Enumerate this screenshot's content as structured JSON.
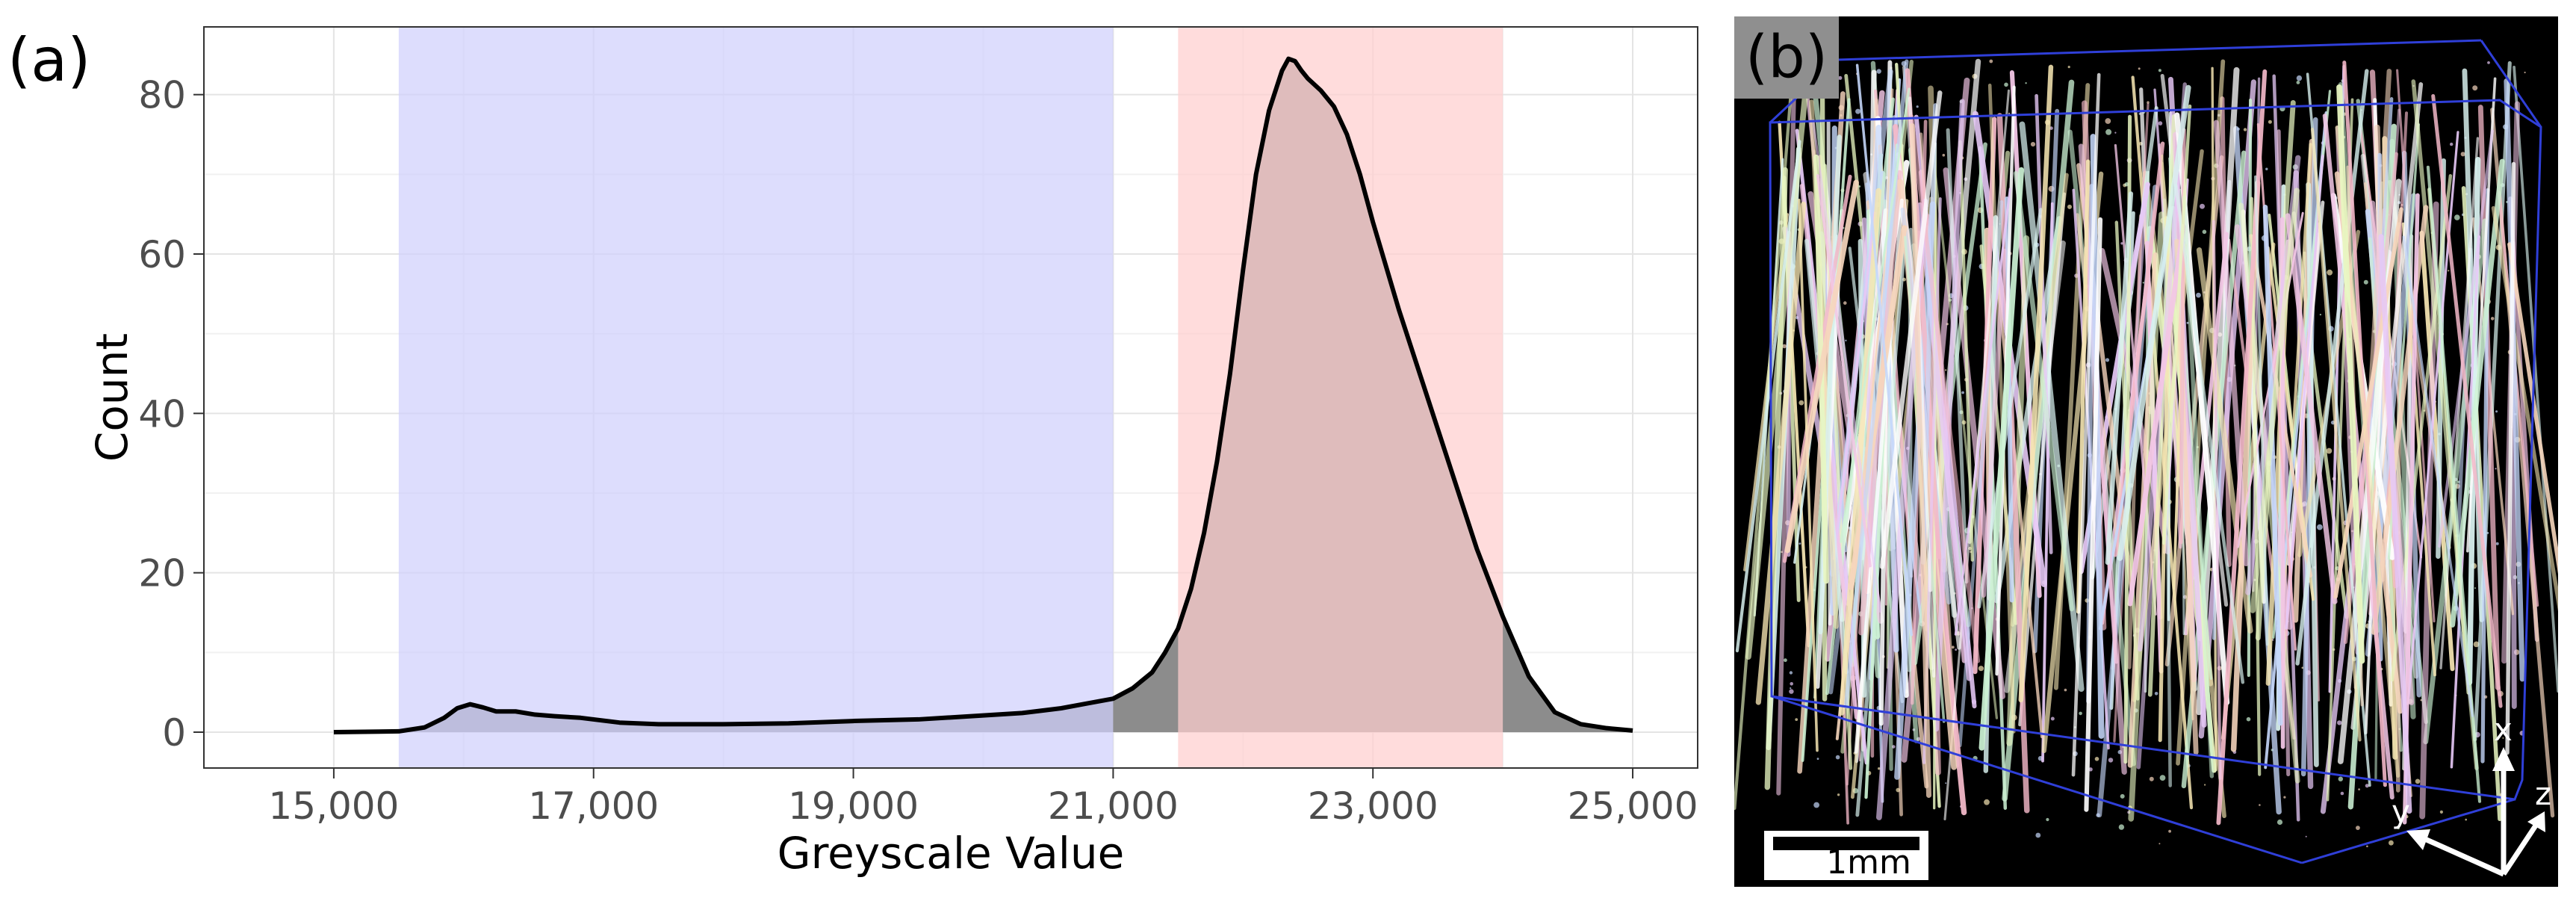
{
  "panel_a_label": "(a)",
  "panel_b_label": "(b)",
  "chart_data": {
    "type": "area",
    "xlabel": "Greyscale Value",
    "ylabel": "Count",
    "xlim": [
      14000,
      25500
    ],
    "ylim": [
      -4.5,
      88.5
    ],
    "x_ticks": [
      15000,
      17000,
      19000,
      21000,
      23000,
      25000
    ],
    "x_tick_labels": [
      "15,000",
      "17,000",
      "19,000",
      "21,000",
      "23,000",
      "25,000"
    ],
    "y_ticks": [
      0,
      20,
      40,
      60,
      80
    ],
    "y_tick_labels": [
      "0",
      "20",
      "40",
      "60",
      "80"
    ],
    "grid": true,
    "regions": [
      {
        "from": 15500,
        "to": 21000,
        "color": "#d0d0fc"
      },
      {
        "from": 21500,
        "to": 24000,
        "color": "#ffcece"
      }
    ],
    "series": [
      {
        "fill": "#8c8c8c",
        "x": [
          15000,
          15500,
          15700,
          15850,
          15950,
          16050,
          16150,
          16250,
          16400,
          16550,
          16700,
          16900,
          17200,
          17500,
          18000,
          18500,
          19000,
          19500,
          20000,
          20300,
          20600,
          20800,
          21000,
          21150,
          21300,
          21400,
          21500,
          21600,
          21700,
          21800,
          21900,
          22000,
          22100,
          22200,
          22300,
          22350,
          22400,
          22450,
          22500,
          22600,
          22700,
          22800,
          22900,
          23000,
          23200,
          23400,
          23600,
          23800,
          24000,
          24200,
          24400,
          24600,
          24800,
          25000
        ],
        "y": [
          0,
          0.1,
          0.6,
          1.8,
          3.0,
          3.5,
          3.1,
          2.6,
          2.6,
          2.2,
          2.0,
          1.8,
          1.2,
          1.0,
          1.0,
          1.1,
          1.4,
          1.6,
          2.1,
          2.4,
          3.0,
          3.6,
          4.2,
          5.5,
          7.5,
          10,
          13,
          18,
          25,
          34,
          45,
          58,
          70,
          78,
          83,
          84.5,
          84.2,
          83,
          82,
          80.5,
          78.5,
          75,
          70,
          64,
          53,
          43,
          33,
          23,
          14.5,
          7,
          2.5,
          1.0,
          0.5,
          0.2
        ]
      }
    ]
  },
  "panel_b": {
    "scale_bar_label": "1mm",
    "axis_labels": [
      "x",
      "y",
      "z"
    ]
  }
}
